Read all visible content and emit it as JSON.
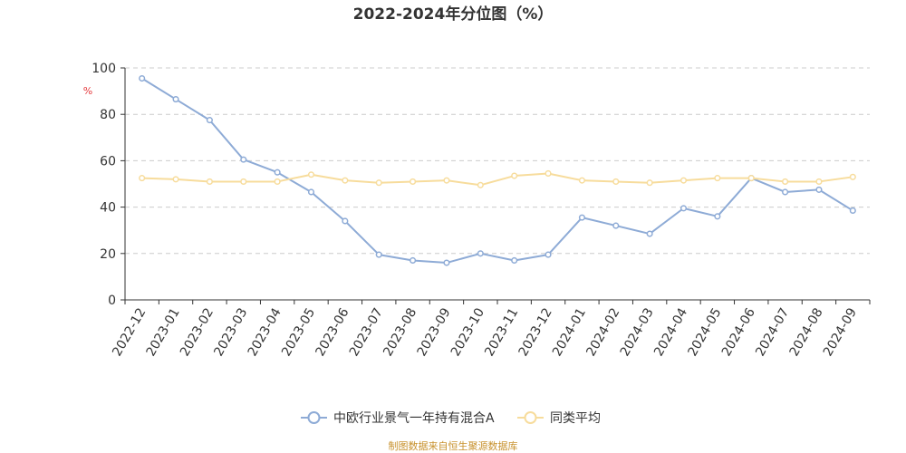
{
  "chart_data": {
    "type": "line",
    "title": "2022-2024年分位图（%）",
    "ylabel": "%",
    "xlabel": "",
    "ylim": [
      0,
      100
    ],
    "yticks": [
      0,
      20,
      40,
      60,
      80,
      100
    ],
    "grid": "horizontal-dashed",
    "legend_position": "bottom-center",
    "categories": [
      "2022-12",
      "2023-01",
      "2023-02",
      "2023-03",
      "2023-04",
      "2023-05",
      "2023-06",
      "2023-07",
      "2023-08",
      "2023-09",
      "2023-10",
      "2023-11",
      "2023-12",
      "2024-01",
      "2024-02",
      "2024-03",
      "2024-04",
      "2024-05",
      "2024-06",
      "2024-07",
      "2024-08",
      "2024-09"
    ],
    "series": [
      {
        "name": "中欧行业景气一年持有混合A",
        "color": "#8eabd6",
        "values": [
          95.5,
          86.5,
          77.5,
          60.5,
          55,
          46.5,
          34,
          19.5,
          17,
          16,
          20,
          17,
          19.5,
          35.5,
          32,
          28.5,
          39.5,
          36,
          52.5,
          46.5,
          47.5,
          38.5
        ]
      },
      {
        "name": "同类平均",
        "color": "#f7dc9c",
        "values": [
          52.5,
          52,
          51,
          51,
          51,
          54,
          51.5,
          50.5,
          51,
          51.5,
          49.5,
          53.5,
          54.5,
          51.5,
          51,
          50.5,
          51.5,
          52.5,
          52.5,
          51,
          51,
          53
        ]
      }
    ]
  },
  "source_text": "制图数据来自恒生聚源数据库"
}
